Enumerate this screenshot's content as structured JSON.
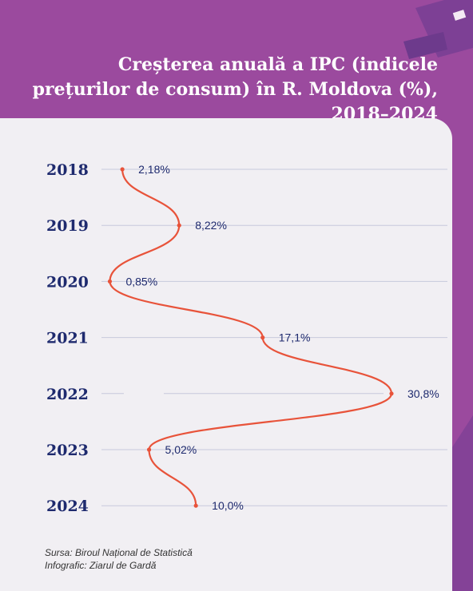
{
  "title": "Creșterea anuală a IPC (indicele prețurilor de consum) în R. Moldova (%), 2018–2024",
  "colors": {
    "background": "#9b4a9e",
    "card": "#f1eff3",
    "line": "#e8533a",
    "text": "#1e2a6e",
    "grid": "#c7c9dc"
  },
  "chart_data": {
    "type": "line",
    "title": "Creșterea anuală a IPC (indicele prețurilor de consum) în R. Moldova (%), 2018–2024",
    "orientation": "vertical-categories",
    "categories": [
      "2018",
      "2019",
      "2020",
      "2021",
      "2022",
      "2023",
      "2024"
    ],
    "values": [
      2.18,
      8.22,
      0.85,
      17.1,
      30.8,
      5.02,
      10.0
    ],
    "labels": [
      "2,18%",
      "8,22%",
      "0,85%",
      "17,1%",
      "30,8%",
      "5,02%",
      "10,0%"
    ],
    "xlim": [
      0,
      31
    ],
    "grid": true,
    "legend": "none"
  },
  "footer": {
    "source": "Sursa: Biroul Național de Statistică",
    "credit": "Infografic: Ziarul de Gardă"
  }
}
